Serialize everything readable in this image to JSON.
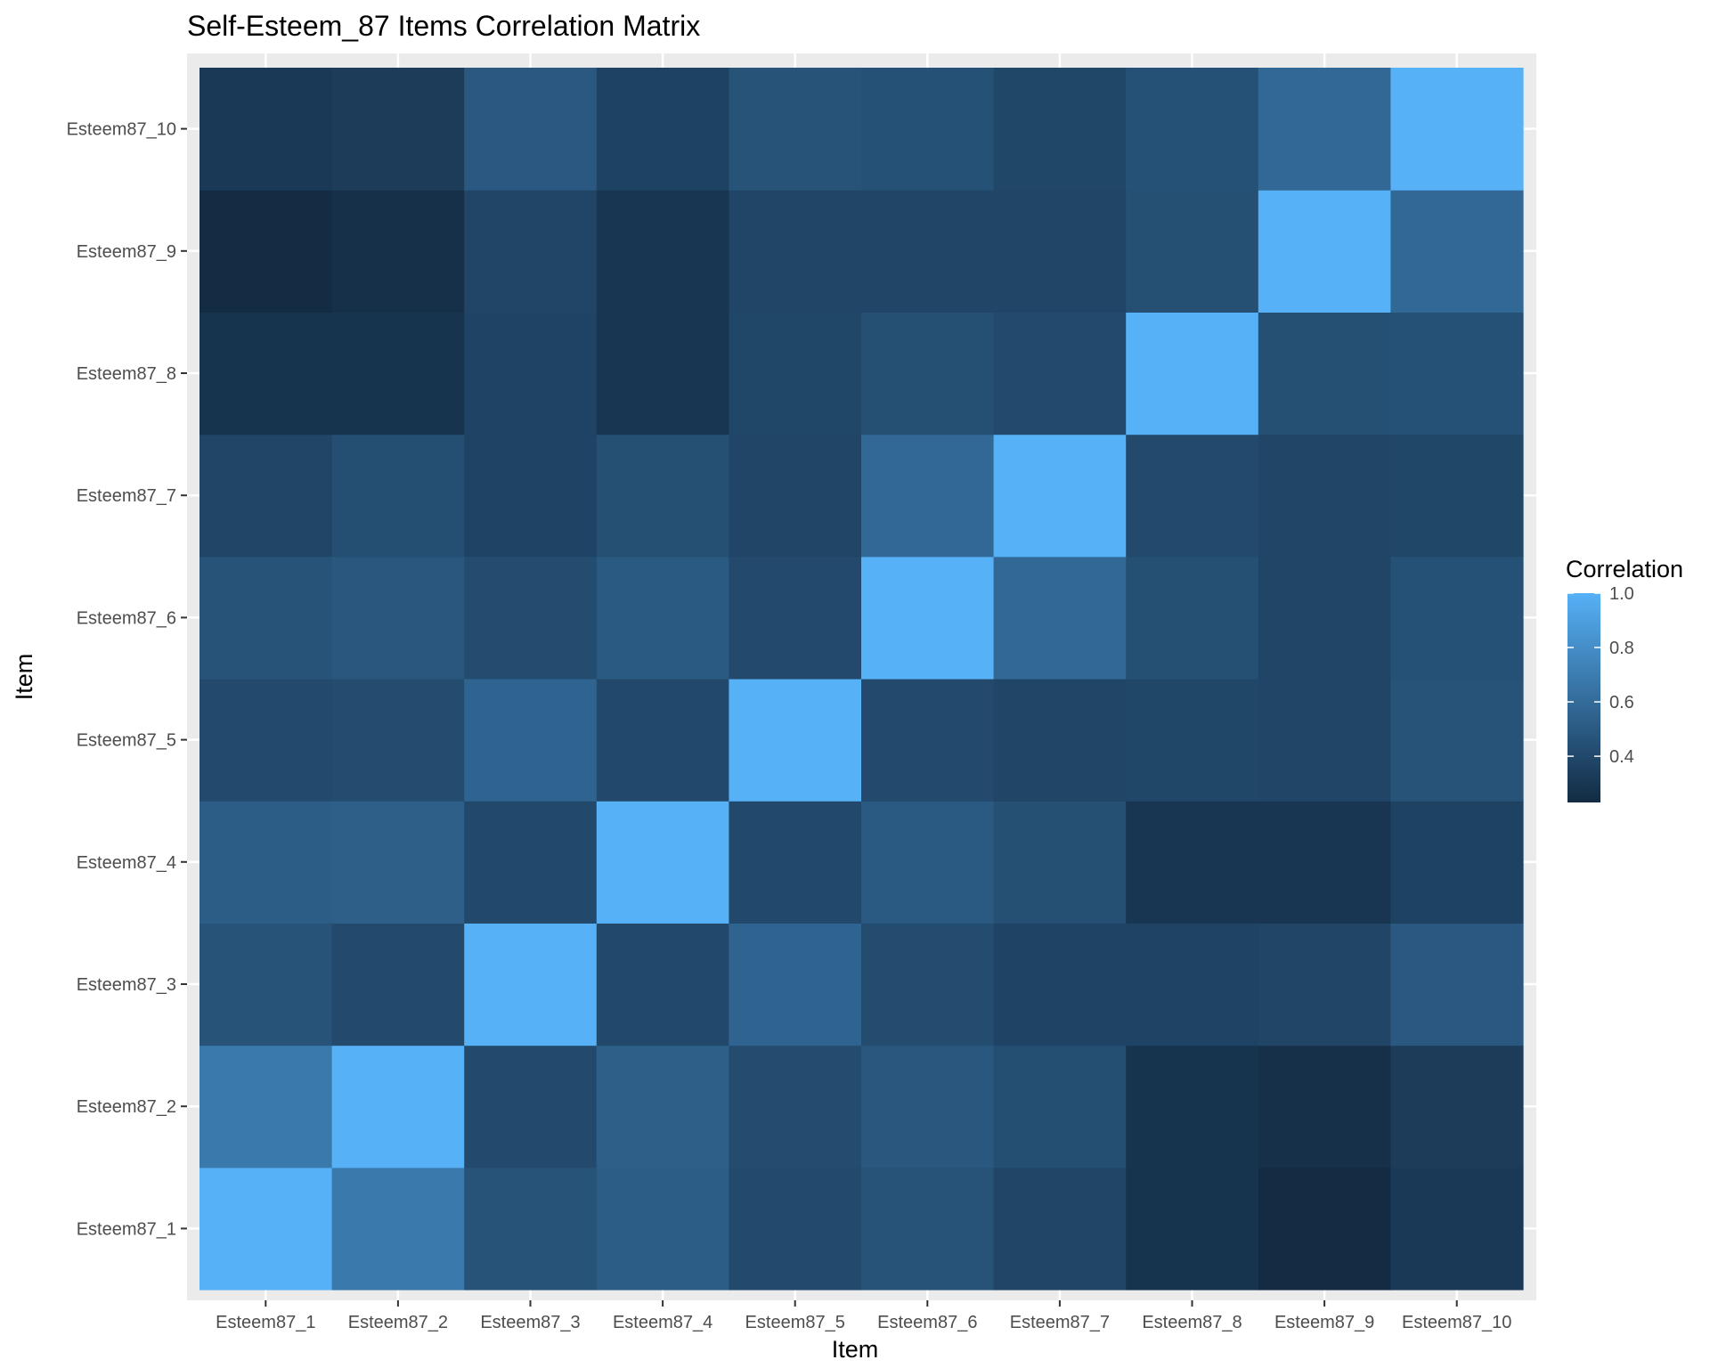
{
  "chart_data": {
    "type": "heatmap",
    "title": "Self-Esteem_87 Items Correlation Matrix",
    "xlabel": "Item",
    "ylabel": "Item",
    "x_categories": [
      "Esteem87_1",
      "Esteem87_2",
      "Esteem87_3",
      "Esteem87_4",
      "Esteem87_5",
      "Esteem87_6",
      "Esteem87_7",
      "Esteem87_8",
      "Esteem87_9",
      "Esteem87_10"
    ],
    "y_categories": [
      "Esteem87_1",
      "Esteem87_2",
      "Esteem87_3",
      "Esteem87_4",
      "Esteem87_5",
      "Esteem87_6",
      "Esteem87_7",
      "Esteem87_8",
      "Esteem87_9",
      "Esteem87_10"
    ],
    "values": [
      [
        1.0,
        0.68,
        0.46,
        0.52,
        0.41,
        0.46,
        0.38,
        0.28,
        0.23,
        0.31
      ],
      [
        0.68,
        1.0,
        0.41,
        0.53,
        0.42,
        0.48,
        0.43,
        0.28,
        0.26,
        0.33
      ],
      [
        0.46,
        0.41,
        1.0,
        0.4,
        0.56,
        0.42,
        0.37,
        0.37,
        0.38,
        0.49
      ],
      [
        0.52,
        0.53,
        0.4,
        1.0,
        0.4,
        0.5,
        0.44,
        0.29,
        0.29,
        0.36
      ],
      [
        0.41,
        0.42,
        0.56,
        0.4,
        1.0,
        0.41,
        0.38,
        0.39,
        0.38,
        0.46
      ],
      [
        0.46,
        0.48,
        0.42,
        0.5,
        0.41,
        1.0,
        0.58,
        0.44,
        0.38,
        0.45
      ],
      [
        0.38,
        0.43,
        0.37,
        0.44,
        0.38,
        0.58,
        1.0,
        0.41,
        0.38,
        0.39
      ],
      [
        0.28,
        0.28,
        0.37,
        0.29,
        0.39,
        0.44,
        0.41,
        1.0,
        0.44,
        0.45
      ],
      [
        0.23,
        0.26,
        0.38,
        0.29,
        0.38,
        0.38,
        0.38,
        0.44,
        1.0,
        0.58
      ],
      [
        0.31,
        0.33,
        0.49,
        0.36,
        0.46,
        0.45,
        0.39,
        0.45,
        0.58,
        1.0
      ]
    ],
    "color_scale": {
      "low": "#132B43",
      "high": "#56B1F7",
      "min": 0.23,
      "max": 1.0
    },
    "legend": {
      "title": "Correlation",
      "position": "right",
      "breaks": [
        1.0,
        0.8,
        0.6,
        0.4
      ],
      "labels": [
        "1.0",
        "0.8",
        "0.6",
        "0.4"
      ]
    },
    "panel_background": "#EBEBEB",
    "grid": true
  }
}
